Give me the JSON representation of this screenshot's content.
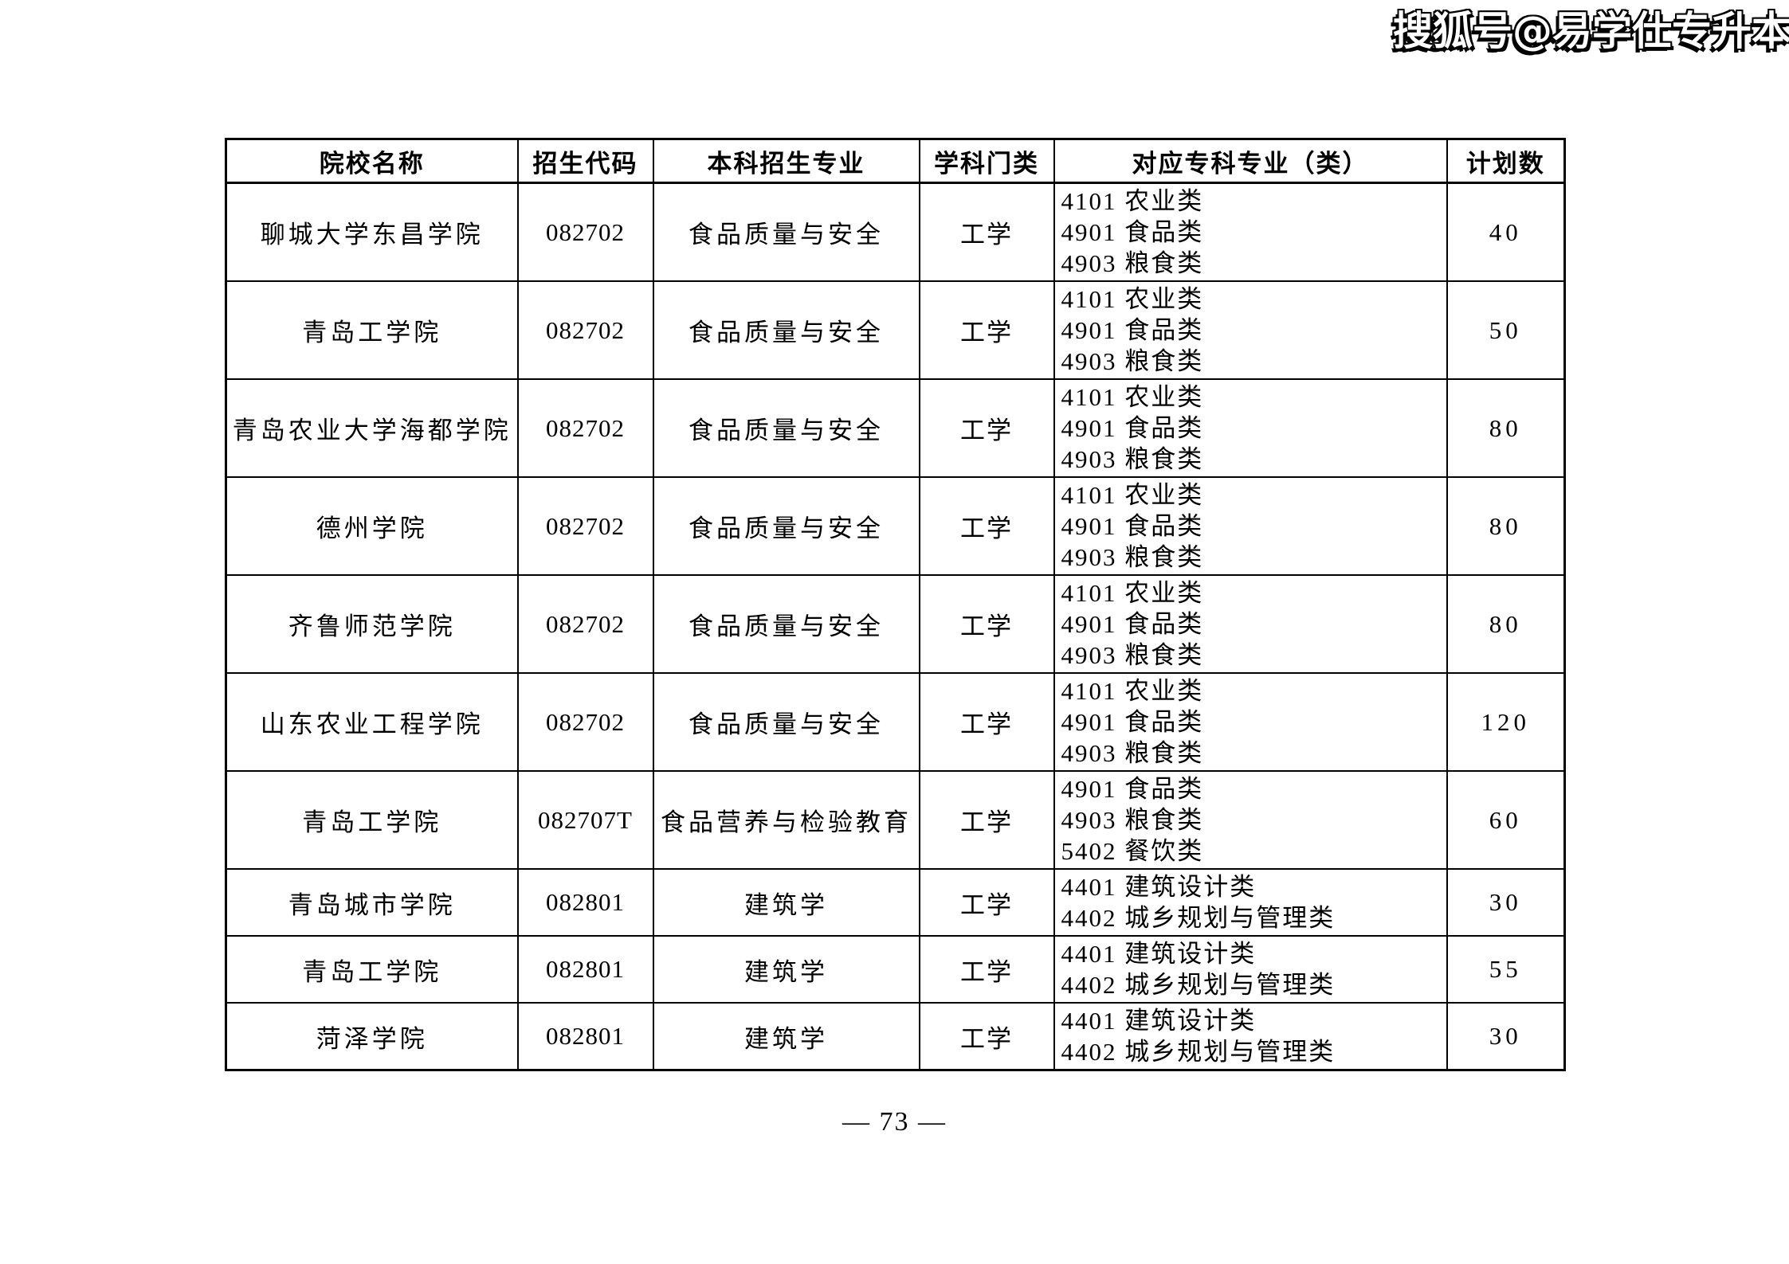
{
  "watermark": {
    "text": "搜狐号@易学仕专升本"
  },
  "page": {
    "number_label": "— 73 —"
  },
  "colors": {
    "text": "#000000",
    "background": "#ffffff",
    "border": "#000000",
    "watermark_fill": "#ffffff",
    "watermark_outline": "#000000"
  },
  "table": {
    "headers": [
      "院校名称",
      "招生代码",
      "本科招生专业",
      "学科门类",
      "对应专科专业（类）",
      "计划数"
    ],
    "rows": [
      {
        "school": "聊城大学东昌学院",
        "code": "082702",
        "major": "食品质量与安全",
        "category": "工学",
        "sub_majors": [
          "4101 农业类",
          "4901 食品类",
          "4903 粮食类"
        ],
        "plan": "40"
      },
      {
        "school": "青岛工学院",
        "code": "082702",
        "major": "食品质量与安全",
        "category": "工学",
        "sub_majors": [
          "4101 农业类",
          "4901 食品类",
          "4903 粮食类"
        ],
        "plan": "50"
      },
      {
        "school": "青岛农业大学海都学院",
        "code": "082702",
        "major": "食品质量与安全",
        "category": "工学",
        "sub_majors": [
          "4101 农业类",
          "4901 食品类",
          "4903 粮食类"
        ],
        "plan": "80"
      },
      {
        "school": "德州学院",
        "code": "082702",
        "major": "食品质量与安全",
        "category": "工学",
        "sub_majors": [
          "4101 农业类",
          "4901 食品类",
          "4903 粮食类"
        ],
        "plan": "80"
      },
      {
        "school": "齐鲁师范学院",
        "code": "082702",
        "major": "食品质量与安全",
        "category": "工学",
        "sub_majors": [
          "4101 农业类",
          "4901 食品类",
          "4903 粮食类"
        ],
        "plan": "80"
      },
      {
        "school": "山东农业工程学院",
        "code": "082702",
        "major": "食品质量与安全",
        "category": "工学",
        "sub_majors": [
          "4101 农业类",
          "4901 食品类",
          "4903 粮食类"
        ],
        "plan": "120"
      },
      {
        "school": "青岛工学院",
        "code": "082707T",
        "major": "食品营养与检验教育",
        "category": "工学",
        "sub_majors": [
          "4901 食品类",
          "4903 粮食类",
          "5402 餐饮类"
        ],
        "plan": "60"
      },
      {
        "school": "青岛城市学院",
        "code": "082801",
        "major": "建筑学",
        "category": "工学",
        "sub_majors": [
          "4401 建筑设计类",
          "4402 城乡规划与管理类"
        ],
        "plan": "30"
      },
      {
        "school": "青岛工学院",
        "code": "082801",
        "major": "建筑学",
        "category": "工学",
        "sub_majors": [
          "4401 建筑设计类",
          "4402 城乡规划与管理类"
        ],
        "plan": "55"
      },
      {
        "school": "菏泽学院",
        "code": "082801",
        "major": "建筑学",
        "category": "工学",
        "sub_majors": [
          "4401 建筑设计类",
          "4402 城乡规划与管理类"
        ],
        "plan": "30"
      }
    ]
  }
}
